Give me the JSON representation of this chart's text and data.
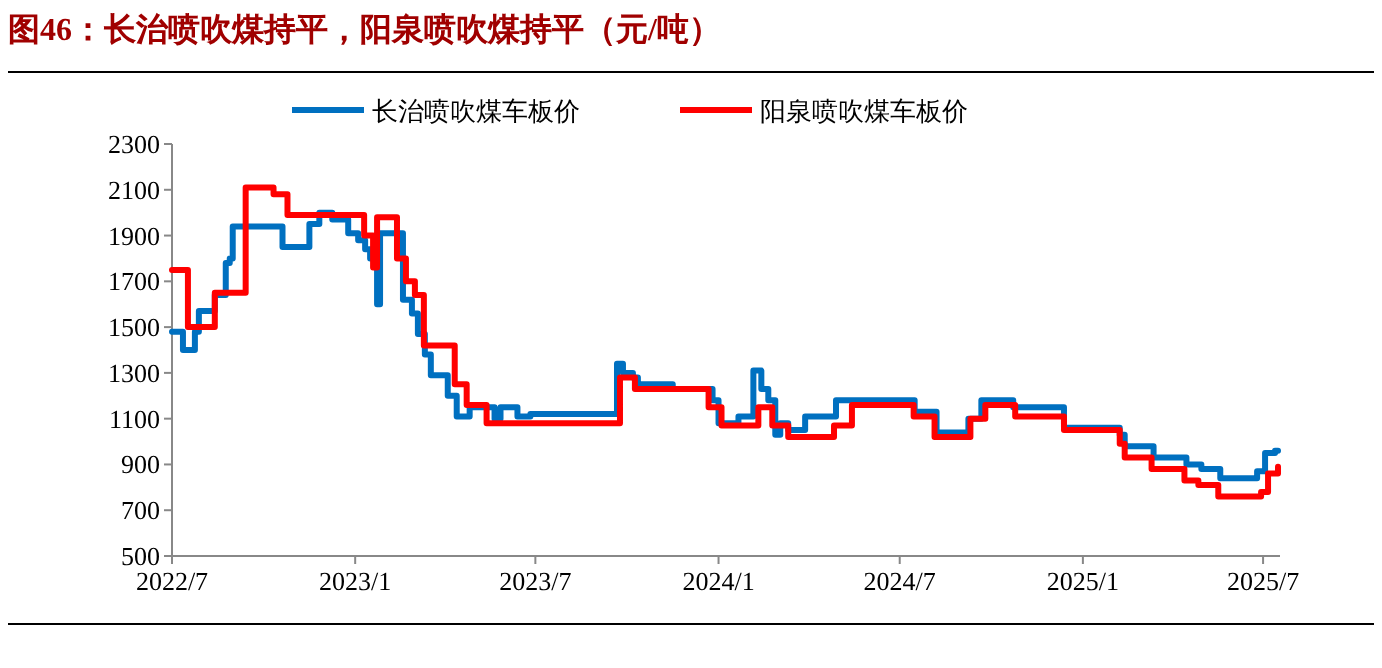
{
  "chart_data": {
    "type": "step",
    "title": "图46：长治喷吹煤持平，阳泉喷吹煤持平（元/吨）",
    "xlim": [
      "2022-07-01",
      "2025-07-18"
    ],
    "xticks": [
      {
        "value": "2022-07-01",
        "label": "2022/7"
      },
      {
        "value": "2023-01-01",
        "label": "2023/1"
      },
      {
        "value": "2023-07-01",
        "label": "2023/7"
      },
      {
        "value": "2024-01-01",
        "label": "2024/1"
      },
      {
        "value": "2024-07-01",
        "label": "2024/7"
      },
      {
        "value": "2025-01-01",
        "label": "2025/1"
      },
      {
        "value": "2025-07-01",
        "label": "2025/7"
      }
    ],
    "ylim": [
      500,
      2300
    ],
    "yticks": [
      500,
      700,
      900,
      1100,
      1300,
      1500,
      1700,
      1900,
      2100,
      2300
    ],
    "grid": false,
    "legend": "top",
    "line_style": "solid",
    "marker": "none",
    "series": [
      {
        "name": "长治喷吹煤车板价",
        "color": "#0070c0",
        "x": [
          "2022-07-01",
          "2022-07-12",
          "2022-07-24",
          "2022-07-28",
          "2022-08-13",
          "2022-08-24",
          "2022-08-28",
          "2022-08-31",
          "2022-10-20",
          "2022-11-16",
          "2022-11-26",
          "2022-12-09",
          "2022-12-25",
          "2023-01-04",
          "2023-01-11",
          "2023-01-16",
          "2023-01-23",
          "2023-01-26",
          "2023-02-18",
          "2023-02-27",
          "2023-03-05",
          "2023-03-12",
          "2023-03-18",
          "2023-04-04",
          "2023-04-13",
          "2023-04-26",
          "2023-05-21",
          "2023-05-27",
          "2023-06-13",
          "2023-06-26",
          "2023-09-21",
          "2023-09-27",
          "2023-10-07",
          "2023-10-12",
          "2023-11-16",
          "2023-12-26",
          "2024-01-01",
          "2024-01-21",
          "2024-02-05",
          "2024-02-13",
          "2024-02-20",
          "2024-02-27",
          "2024-03-03",
          "2024-03-11",
          "2024-03-28",
          "2024-04-28",
          "2024-07-16",
          "2024-08-07",
          "2024-09-08",
          "2024-09-21",
          "2024-10-23",
          "2024-12-13",
          "2025-02-07",
          "2025-02-12",
          "2025-03-13",
          "2025-04-15",
          "2025-04-30",
          "2025-05-19",
          "2025-06-25",
          "2025-07-03",
          "2025-07-13",
          "2025-07-16"
        ],
        "values": [
          1480,
          1400,
          1480,
          1570,
          1640,
          1780,
          1800,
          1940,
          1850,
          1950,
          2000,
          1970,
          1910,
          1880,
          1840,
          1800,
          1600,
          1910,
          1620,
          1560,
          1470,
          1380,
          1290,
          1200,
          1110,
          1150,
          1100,
          1150,
          1110,
          1120,
          1340,
          1300,
          1280,
          1250,
          1230,
          1180,
          1080,
          1110,
          1310,
          1230,
          1180,
          1030,
          1080,
          1050,
          1110,
          1180,
          1130,
          1040,
          1100,
          1180,
          1150,
          1060,
          1030,
          980,
          930,
          900,
          880,
          840,
          870,
          950,
          960,
          960
        ]
      },
      {
        "name": "阳泉喷吹煤车板价",
        "color": "#ff0000",
        "x": [
          "2022-07-01",
          "2022-07-17",
          "2022-08-13",
          "2022-09-13",
          "2022-10-11",
          "2022-10-25",
          "2023-01-10",
          "2023-01-19",
          "2023-01-23",
          "2023-02-12",
          "2023-02-21",
          "2023-03-02",
          "2023-03-11",
          "2023-04-11",
          "2023-04-23",
          "2023-05-13",
          "2023-09-24",
          "2023-10-09",
          "2023-12-22",
          "2024-01-04",
          "2024-02-10",
          "2024-02-24",
          "2024-03-11",
          "2024-04-26",
          "2024-05-14",
          "2024-07-15",
          "2024-08-05",
          "2024-09-10",
          "2024-09-25",
          "2024-10-25",
          "2024-12-13",
          "2025-02-07",
          "2025-02-12",
          "2025-03-11",
          "2025-04-13",
          "2025-04-27",
          "2025-05-17",
          "2025-06-29",
          "2025-07-06",
          "2025-07-16"
        ],
        "values": [
          1750,
          1500,
          1650,
          2110,
          2080,
          1990,
          1900,
          1760,
          1980,
          1800,
          1700,
          1640,
          1420,
          1250,
          1160,
          1080,
          1280,
          1230,
          1150,
          1070,
          1150,
          1070,
          1020,
          1070,
          1160,
          1110,
          1020,
          1100,
          1160,
          1110,
          1050,
          990,
          930,
          880,
          830,
          810,
          760,
          780,
          860,
          890
        ]
      }
    ]
  }
}
